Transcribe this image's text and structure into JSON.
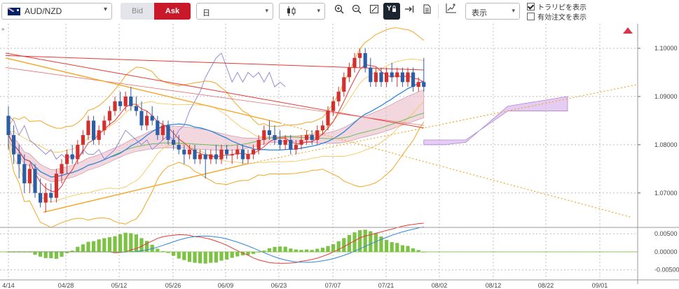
{
  "toolbar": {
    "symbol": "AUD/NZD",
    "bid_label": "Bid",
    "ask_label": "Ask",
    "timeframe": "日",
    "chart_style_icon": "candlestick-icon",
    "display_label": "表示",
    "show_trendline_label": "トラリピを表示",
    "show_trendline_checked": true,
    "show_orders_label": "有効注文を表示",
    "show_orders_checked": false,
    "icons": [
      "zoom-in-icon",
      "zoom-out-icon",
      "fit-icon",
      "trendline-lock-icon",
      "scroll-to-latest-icon",
      "document-icon",
      "add-indicator-icon"
    ]
  },
  "colors": {
    "bull": "#d32f2f",
    "bear": "#2b5ea7",
    "ask_accent": "#c8182a",
    "macd_hist": "#7cc243"
  },
  "chart_data": [
    {
      "type": "candlestick",
      "x_labels": [
        "4/14",
        "04/28",
        "05/12",
        "05/26",
        "06/09",
        "06/23",
        "07/07",
        "07/21",
        "08/02",
        "08/12",
        "08/22",
        "09/01"
      ],
      "y_ticks": [
        "1.10000",
        "1.09000",
        "1.08000",
        "1.07000"
      ],
      "ylim": [
        1.063,
        1.1045
      ],
      "candles": [
        [
          1.086,
          1.088,
          1.079,
          1.082
        ],
        [
          1.082,
          1.084,
          1.076,
          1.078
        ],
        [
          1.078,
          1.08,
          1.073,
          1.076
        ],
        [
          1.076,
          1.078,
          1.07,
          1.072
        ],
        [
          1.072,
          1.076,
          1.07,
          1.075
        ],
        [
          1.075,
          1.076,
          1.069,
          1.07
        ],
        [
          1.07,
          1.073,
          1.067,
          1.068
        ],
        [
          1.068,
          1.072,
          1.066,
          1.07
        ],
        [
          1.07,
          1.072,
          1.068,
          1.069
        ],
        [
          1.069,
          1.075,
          1.068,
          1.074
        ],
        [
          1.074,
          1.077,
          1.072,
          1.076
        ],
        [
          1.076,
          1.079,
          1.074,
          1.078
        ],
        [
          1.078,
          1.08,
          1.076,
          1.077
        ],
        [
          1.077,
          1.081,
          1.076,
          1.08
        ],
        [
          1.08,
          1.083,
          1.078,
          1.082
        ],
        [
          1.082,
          1.086,
          1.081,
          1.085
        ],
        [
          1.085,
          1.086,
          1.08,
          1.081
        ],
        [
          1.081,
          1.084,
          1.08,
          1.083
        ],
        [
          1.083,
          1.086,
          1.082,
          1.085
        ],
        [
          1.085,
          1.088,
          1.084,
          1.087
        ],
        [
          1.087,
          1.09,
          1.086,
          1.089
        ],
        [
          1.089,
          1.091,
          1.087,
          1.088
        ],
        [
          1.088,
          1.091,
          1.087,
          1.09
        ],
        [
          1.09,
          1.092,
          1.087,
          1.088
        ],
        [
          1.088,
          1.09,
          1.086,
          1.087
        ],
        [
          1.087,
          1.089,
          1.083,
          1.084
        ],
        [
          1.084,
          1.087,
          1.083,
          1.086
        ],
        [
          1.086,
          1.088,
          1.084,
          1.085
        ],
        [
          1.085,
          1.086,
          1.081,
          1.082
        ],
        [
          1.082,
          1.085,
          1.081,
          1.084
        ],
        [
          1.084,
          1.085,
          1.08,
          1.081
        ],
        [
          1.081,
          1.083,
          1.079,
          1.08
        ],
        [
          1.08,
          1.082,
          1.078,
          1.079
        ],
        [
          1.079,
          1.08,
          1.076,
          1.078
        ],
        [
          1.078,
          1.08,
          1.077,
          1.079
        ],
        [
          1.079,
          1.08,
          1.076,
          1.077
        ],
        [
          1.077,
          1.079,
          1.076,
          1.078
        ],
        [
          1.078,
          1.079,
          1.073,
          1.077
        ],
        [
          1.077,
          1.079,
          1.076,
          1.078
        ],
        [
          1.078,
          1.08,
          1.076,
          1.077
        ],
        [
          1.077,
          1.08,
          1.076,
          1.079
        ],
        [
          1.079,
          1.08,
          1.077,
          1.078
        ],
        [
          1.078,
          1.079,
          1.076,
          1.078
        ],
        [
          1.078,
          1.08,
          1.077,
          1.079
        ],
        [
          1.079,
          1.08,
          1.076,
          1.077
        ],
        [
          1.077,
          1.079,
          1.076,
          1.078
        ],
        [
          1.078,
          1.08,
          1.077,
          1.079
        ],
        [
          1.079,
          1.082,
          1.078,
          1.081
        ],
        [
          1.081,
          1.084,
          1.08,
          1.083
        ],
        [
          1.083,
          1.085,
          1.081,
          1.082
        ],
        [
          1.082,
          1.084,
          1.08,
          1.081
        ],
        [
          1.081,
          1.083,
          1.079,
          1.08
        ],
        [
          1.08,
          1.082,
          1.079,
          1.081
        ],
        [
          1.081,
          1.082,
          1.078,
          1.079
        ],
        [
          1.079,
          1.081,
          1.078,
          1.08
        ],
        [
          1.08,
          1.082,
          1.079,
          1.081
        ],
        [
          1.081,
          1.083,
          1.08,
          1.082
        ],
        [
          1.082,
          1.083,
          1.08,
          1.081
        ],
        [
          1.081,
          1.084,
          1.08,
          1.083
        ],
        [
          1.083,
          1.085,
          1.082,
          1.084
        ],
        [
          1.084,
          1.088,
          1.083,
          1.087
        ],
        [
          1.087,
          1.09,
          1.086,
          1.089
        ],
        [
          1.089,
          1.092,
          1.088,
          1.091
        ],
        [
          1.091,
          1.095,
          1.09,
          1.094
        ],
        [
          1.094,
          1.097,
          1.093,
          1.096
        ],
        [
          1.096,
          1.099,
          1.095,
          1.098
        ],
        [
          1.098,
          1.1,
          1.096,
          1.099
        ],
        [
          1.099,
          1.1,
          1.095,
          1.096
        ],
        [
          1.096,
          1.098,
          1.092,
          1.093
        ],
        [
          1.093,
          1.096,
          1.092,
          1.095
        ],
        [
          1.095,
          1.096,
          1.092,
          1.093
        ],
        [
          1.093,
          1.096,
          1.092,
          1.095
        ],
        [
          1.095,
          1.097,
          1.093,
          1.094
        ],
        [
          1.094,
          1.096,
          1.092,
          1.095
        ],
        [
          1.095,
          1.096,
          1.092,
          1.093
        ],
        [
          1.093,
          1.096,
          1.092,
          1.095
        ],
        [
          1.095,
          1.096,
          1.091,
          1.092
        ],
        [
          1.092,
          1.094,
          1.091,
          1.093
        ],
        [
          1.093,
          1.098,
          1.091,
          1.092
        ]
      ],
      "ichimoku_future_cloud_end": [
        1.09,
        1.087
      ],
      "projection_lines": "dotted orange forward trend projections",
      "overlays": [
        "ichimoku-cloud",
        "bollinger-bands",
        "moving-averages",
        "trendlines"
      ]
    },
    {
      "type": "macd",
      "y_ticks": [
        "0.00500",
        "0.00000",
        "-0.00500"
      ],
      "ylim": [
        -0.007,
        0.0062
      ],
      "histogram_label": "MACD histogram"
    }
  ]
}
